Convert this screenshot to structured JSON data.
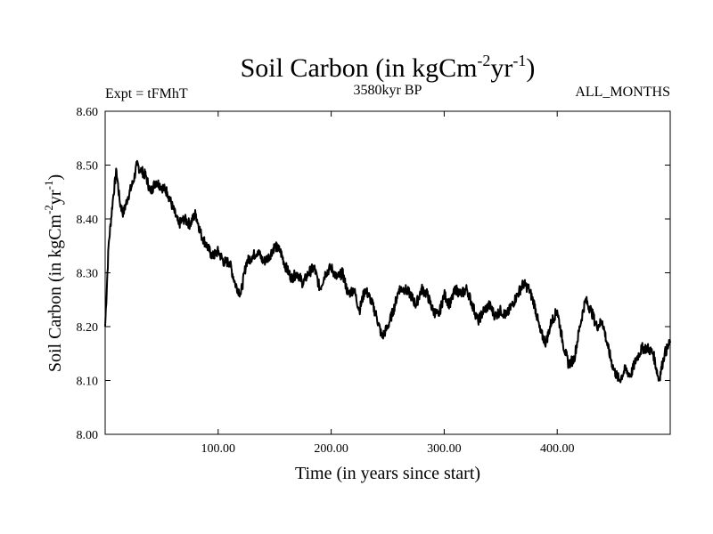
{
  "chart_data": {
    "type": "line",
    "title": "Soil Carbon (in kgCm",
    "title_sup1": "-2",
    "title_mid": "yr",
    "title_sup2": "-1",
    "title_end": ")",
    "left_label": "Expt = tFMhT",
    "center_label": "3580kyr BP",
    "right_label": "ALL_MONTHS",
    "xlabel": "Time (in years since start)",
    "ylabel": "Soil Carbon (in kgCm",
    "ylabel_sup1": "-2",
    "ylabel_mid": "yr",
    "ylabel_sup2": "-1",
    "ylabel_end": ")",
    "xlim": [
      0,
      500
    ],
    "ylim": [
      8.0,
      8.6
    ],
    "xticks": [
      100,
      200,
      300,
      400
    ],
    "xtick_labels": [
      "100.00",
      "200.00",
      "300.00",
      "400.00"
    ],
    "yticks": [
      8.0,
      8.1,
      8.2,
      8.3,
      8.4,
      8.5,
      8.6
    ],
    "ytick_labels": [
      "8.00",
      "8.10",
      "8.20",
      "8.30",
      "8.40",
      "8.50",
      "8.60"
    ],
    "grid": false,
    "series": [
      {
        "name": "Soil Carbon",
        "x": [
          0,
          3,
          7,
          10,
          13,
          16,
          20,
          25,
          28,
          32,
          36,
          40,
          45,
          50,
          55,
          60,
          65,
          70,
          75,
          80,
          85,
          90,
          95,
          100,
          105,
          110,
          115,
          120,
          125,
          130,
          135,
          140,
          145,
          150,
          155,
          160,
          165,
          170,
          175,
          180,
          185,
          190,
          195,
          200,
          205,
          210,
          215,
          220,
          225,
          230,
          235,
          240,
          245,
          250,
          255,
          260,
          265,
          270,
          275,
          280,
          285,
          290,
          295,
          300,
          305,
          310,
          315,
          320,
          325,
          330,
          335,
          340,
          345,
          350,
          355,
          360,
          365,
          370,
          375,
          380,
          385,
          390,
          395,
          400,
          405,
          410,
          415,
          420,
          425,
          430,
          435,
          440,
          445,
          450,
          455,
          460,
          465,
          470,
          475,
          480,
          485,
          490,
          495,
          500
        ],
        "values": [
          8.2,
          8.35,
          8.44,
          8.49,
          8.43,
          8.41,
          8.44,
          8.47,
          8.5,
          8.49,
          8.48,
          8.45,
          8.47,
          8.46,
          8.45,
          8.42,
          8.39,
          8.4,
          8.39,
          8.41,
          8.37,
          8.35,
          8.33,
          8.34,
          8.32,
          8.32,
          8.28,
          8.26,
          8.32,
          8.33,
          8.34,
          8.32,
          8.33,
          8.35,
          8.34,
          8.31,
          8.29,
          8.3,
          8.28,
          8.3,
          8.31,
          8.27,
          8.3,
          8.31,
          8.29,
          8.3,
          8.26,
          8.27,
          8.23,
          8.27,
          8.25,
          8.22,
          8.18,
          8.2,
          8.23,
          8.27,
          8.27,
          8.26,
          8.24,
          8.27,
          8.26,
          8.23,
          8.22,
          8.26,
          8.24,
          8.27,
          8.26,
          8.27,
          8.24,
          8.21,
          8.23,
          8.24,
          8.22,
          8.23,
          8.22,
          8.24,
          8.26,
          8.28,
          8.27,
          8.24,
          8.19,
          8.17,
          8.21,
          8.23,
          8.17,
          8.13,
          8.14,
          8.2,
          8.25,
          8.23,
          8.2,
          8.21,
          8.16,
          8.12,
          8.1,
          8.12,
          8.11,
          8.14,
          8.16,
          8.16,
          8.15,
          8.1,
          8.15,
          8.17
        ]
      }
    ]
  }
}
